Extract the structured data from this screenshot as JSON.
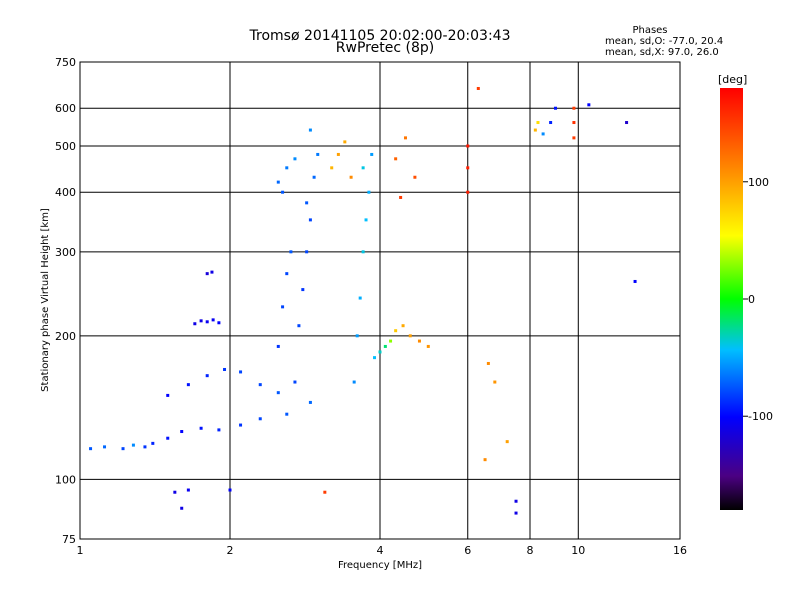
{
  "chart_data": {
    "type": "scatter",
    "title": "Tromsø 20141105 20:02:00-20:03:43",
    "subtitle": "RwPretec (8p)",
    "xlabel": "Frequency [MHz]",
    "ylabel": "Stationary phase Virtual Height [km]",
    "x_scale": "log",
    "y_scale": "log",
    "xlim": [
      1,
      16
    ],
    "ylim": [
      75,
      750
    ],
    "x_ticks": [
      "1",
      "2",
      "4",
      "6",
      "8",
      "10",
      "16"
    ],
    "x_tick_values": [
      1,
      2,
      4,
      6,
      8,
      10,
      16
    ],
    "y_ticks": [
      "75",
      "100",
      "200",
      "300",
      "400",
      "500",
      "600",
      "750"
    ],
    "y_tick_values": [
      75,
      100,
      200,
      300,
      400,
      500,
      600,
      750
    ],
    "grid": true,
    "stats": {
      "heading": "Phases",
      "line_o": "mean, sd,O: -77.0, 20.4",
      "line_x": "mean, sd,X:  97.0, 26.0"
    },
    "colorbar": {
      "label": "[deg]",
      "min": -180,
      "max": 180,
      "ticks": [
        "100",
        "0",
        "-100"
      ],
      "tick_values": [
        100,
        0,
        -100
      ]
    },
    "clusters": [
      {
        "points": [
          [
            1.05,
            116,
            -75
          ],
          [
            1.12,
            117,
            -70
          ],
          [
            1.22,
            116,
            -80
          ],
          [
            1.28,
            118,
            -60
          ],
          [
            1.35,
            117,
            -85
          ]
        ]
      },
      {
        "points": [
          [
            1.4,
            119,
            -90
          ],
          [
            1.5,
            122,
            -95
          ],
          [
            1.6,
            126,
            -100
          ],
          [
            1.75,
            128,
            -95
          ],
          [
            1.9,
            127,
            -90
          ],
          [
            2.1,
            130,
            -85
          ],
          [
            2.3,
            134,
            -80
          ],
          [
            2.6,
            137,
            -75
          ],
          [
            2.9,
            145,
            -70
          ]
        ]
      },
      {
        "points": [
          [
            1.5,
            150,
            -100
          ],
          [
            1.65,
            158,
            -95
          ],
          [
            1.8,
            165,
            -90
          ],
          [
            1.95,
            170,
            -85
          ],
          [
            2.1,
            168,
            -80
          ],
          [
            2.3,
            158,
            -80
          ],
          [
            2.5,
            152,
            -75
          ]
        ]
      },
      {
        "points": [
          [
            1.7,
            212,
            -110
          ],
          [
            1.75,
            215,
            -110
          ],
          [
            1.8,
            214,
            -105
          ],
          [
            1.85,
            216,
            -105
          ],
          [
            1.9,
            213,
            -100
          ],
          [
            1.8,
            270,
            -115
          ],
          [
            1.84,
            272,
            -110
          ]
        ]
      },
      {
        "points": [
          [
            2.5,
            190,
            -85
          ],
          [
            2.55,
            230,
            -80
          ],
          [
            2.6,
            270,
            -80
          ],
          [
            2.65,
            300,
            -75
          ],
          [
            2.5,
            420,
            -70
          ],
          [
            2.6,
            450,
            -65
          ],
          [
            2.7,
            470,
            -60
          ],
          [
            2.55,
            400,
            -75
          ]
        ]
      },
      {
        "points": [
          [
            2.7,
            160,
            -80
          ],
          [
            2.75,
            210,
            -80
          ],
          [
            2.8,
            250,
            -85
          ],
          [
            2.85,
            300,
            -80
          ],
          [
            2.9,
            350,
            -80
          ],
          [
            2.85,
            380,
            -75
          ],
          [
            2.95,
            430,
            -70
          ],
          [
            3.0,
            480,
            -65
          ],
          [
            2.9,
            540,
            -60
          ]
        ]
      },
      {
        "points": [
          [
            3.55,
            160,
            -60
          ],
          [
            3.6,
            200,
            -55
          ],
          [
            3.65,
            240,
            -50
          ],
          [
            3.7,
            300,
            -40
          ],
          [
            3.75,
            350,
            -45
          ],
          [
            3.8,
            400,
            -50
          ],
          [
            3.7,
            450,
            -40
          ],
          [
            3.85,
            480,
            -55
          ]
        ]
      },
      {
        "points": [
          [
            3.9,
            180,
            -45
          ],
          [
            4.0,
            185,
            -35
          ],
          [
            4.1,
            190,
            -20
          ],
          [
            4.2,
            195,
            30
          ],
          [
            4.3,
            205,
            80
          ],
          [
            4.45,
            210,
            95
          ],
          [
            4.6,
            200,
            100
          ],
          [
            4.8,
            195,
            110
          ],
          [
            5.0,
            190,
            105
          ]
        ]
      },
      {
        "points": [
          [
            3.2,
            450,
            90
          ],
          [
            3.3,
            480,
            100
          ],
          [
            3.4,
            510,
            95
          ],
          [
            3.5,
            430,
            110
          ],
          [
            4.3,
            470,
            130
          ],
          [
            4.5,
            520,
            120
          ],
          [
            4.7,
            430,
            140
          ],
          [
            4.4,
            390,
            150
          ]
        ]
      },
      {
        "points": [
          [
            6.0,
            400,
            165
          ],
          [
            6.0,
            450,
            165
          ],
          [
            6.0,
            500,
            168
          ],
          [
            6.3,
            660,
            150
          ],
          [
            6.6,
            175,
            110
          ],
          [
            6.8,
            160,
            105
          ],
          [
            7.2,
            120,
            100
          ],
          [
            7.5,
            85,
            -110
          ]
        ]
      },
      {
        "points": [
          [
            8.2,
            540,
            90
          ],
          [
            8.3,
            560,
            70
          ],
          [
            8.5,
            530,
            -60
          ],
          [
            8.8,
            560,
            -90
          ],
          [
            9.0,
            600,
            -95
          ],
          [
            9.8,
            520,
            150
          ],
          [
            9.8,
            560,
            155
          ],
          [
            9.8,
            600,
            150
          ],
          [
            10.5,
            610,
            -100
          ],
          [
            12.5,
            560,
            -120
          ],
          [
            13.0,
            260,
            -100
          ]
        ]
      },
      {
        "points": [
          [
            1.55,
            94,
            -110
          ],
          [
            1.65,
            95,
            -105
          ],
          [
            1.6,
            87,
            -110
          ],
          [
            2.0,
            95,
            -100
          ],
          [
            3.1,
            94,
            150
          ],
          [
            6.5,
            110,
            110
          ],
          [
            7.5,
            90,
            -110
          ]
        ]
      }
    ]
  }
}
